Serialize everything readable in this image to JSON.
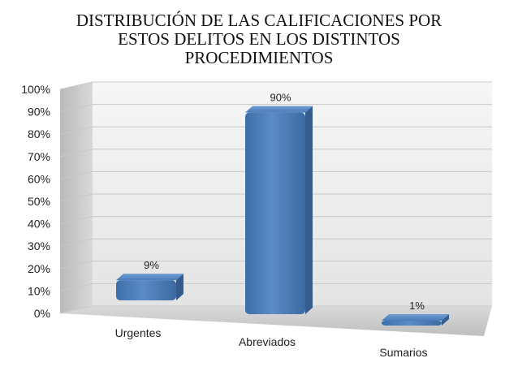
{
  "chart_data": {
    "type": "bar",
    "title": "DISTRIBUCIÓN DE LAS CALIFICACIONES POR\nESTOS DELITOS EN  LOS DISTINTOS\nPROCEDIMIENTOS",
    "categories": [
      "Urgentes",
      "Abreviados",
      "Sumarios"
    ],
    "values": [
      9,
      90,
      1
    ],
    "data_labels": [
      "9%",
      "90%",
      "1%"
    ],
    "y_ticks": [
      "0%",
      "10%",
      "20%",
      "30%",
      "40%",
      "50%",
      "60%",
      "70%",
      "80%",
      "90%",
      "100%"
    ],
    "ylim": [
      0,
      100
    ],
    "grid": true,
    "style": "3d-column",
    "bar_color": "#4f81bd"
  }
}
